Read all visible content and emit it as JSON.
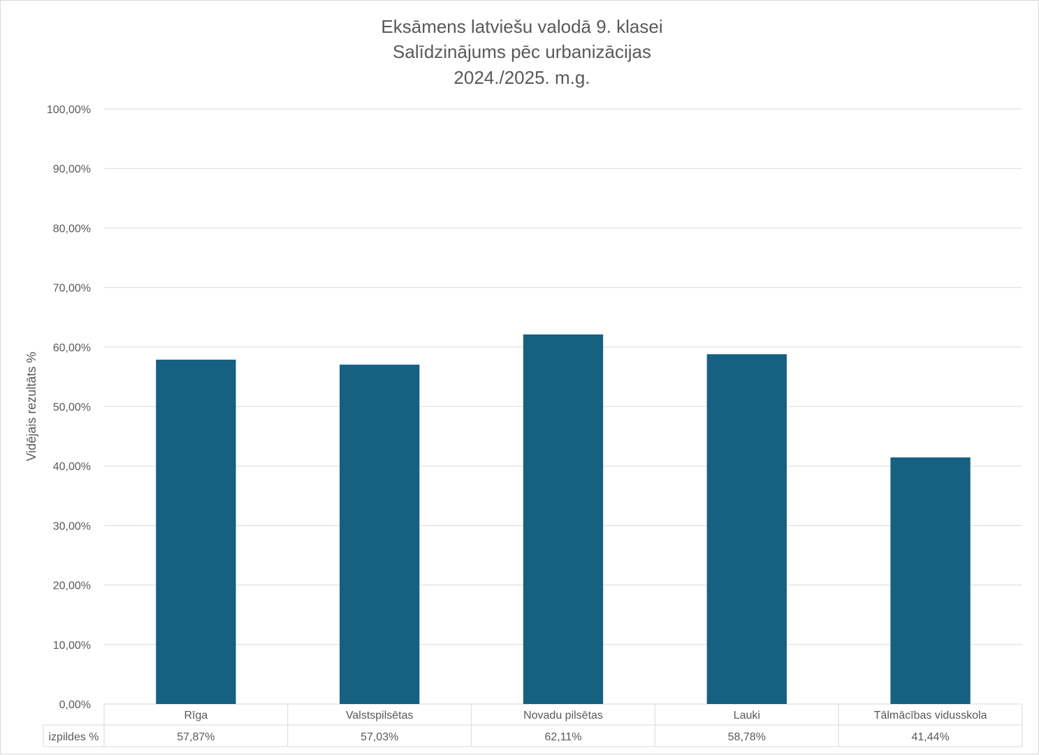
{
  "chart_data": {
    "type": "bar",
    "title_lines": [
      "Eksāmens latviešu valodā 9. klasei",
      "Salīdzinājums pēc urbanizācijas",
      "2024./2025. m.g."
    ],
    "ylabel": "Vidējais rezultāts %",
    "ylim": [
      0,
      100
    ],
    "yticks": [
      0,
      10,
      20,
      30,
      40,
      50,
      60,
      70,
      80,
      90,
      100
    ],
    "ytick_labels": [
      "0,00%",
      "10,00%",
      "20,00%",
      "30,00%",
      "40,00%",
      "50,00%",
      "60,00%",
      "70,00%",
      "80,00%",
      "90,00%",
      "100,00%"
    ],
    "grid": true,
    "categories": [
      "Rīga",
      "Valstspilsētas",
      "Novadu pilsētas",
      "Lauki",
      "Tālmācības vidusskola"
    ],
    "series": [
      {
        "name": "izpildes %",
        "values": [
          57.87,
          57.03,
          62.11,
          58.78,
          41.44
        ],
        "value_labels": [
          "57,87%",
          "57,03%",
          "62,11%",
          "58,78%",
          "41,44%"
        ]
      }
    ],
    "bar_color": "#166082",
    "data_table": true
  }
}
